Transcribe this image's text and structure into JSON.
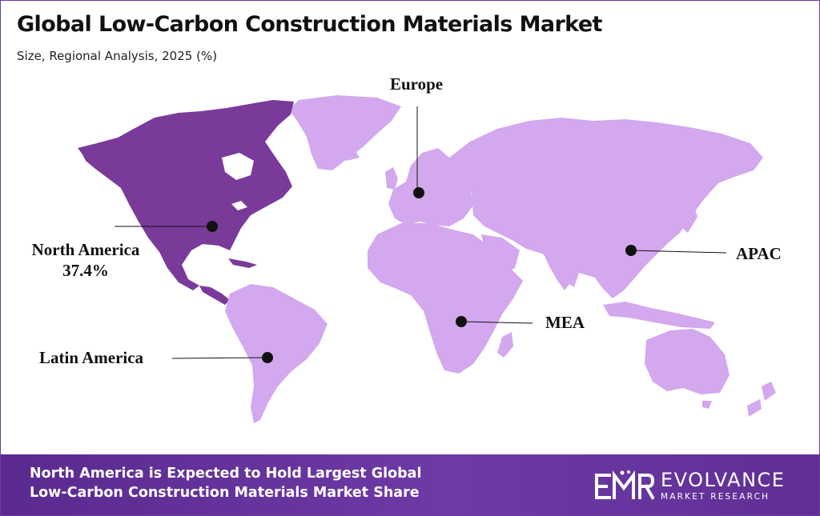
{
  "header": {
    "title": "Global Low-Carbon Construction Materials Market",
    "subtitle": "Size, Regional Analysis, 2025 (%)"
  },
  "colors": {
    "highlight_region": "#7a3a9a",
    "other_regions": "#d3a8ee",
    "marker": "#111111",
    "footer_bg": "#6a38a0"
  },
  "map": {
    "highlighted_region": "North America",
    "regions": [
      {
        "key": "north_america",
        "name": "North America",
        "value": "37.4%",
        "highlighted": true
      },
      {
        "key": "europe",
        "name": "Europe",
        "highlighted": false
      },
      {
        "key": "apac",
        "name": "APAC",
        "highlighted": false
      },
      {
        "key": "mea",
        "name": "MEA",
        "highlighted": false
      },
      {
        "key": "latin_america",
        "name": "Latin America",
        "highlighted": false
      }
    ]
  },
  "labels": {
    "north_america": "North America",
    "north_america_value": "37.4%",
    "europe": "Europe",
    "apac": "APAC",
    "mea": "MEA",
    "latin_america": "Latin America"
  },
  "footer": {
    "line1": "North America is Expected to Hold Largest Global",
    "line2": "Low-Carbon Construction Materials Market Share",
    "logo_name": "EVOLVANCE",
    "logo_sub": "MARKET RESEARCH"
  }
}
